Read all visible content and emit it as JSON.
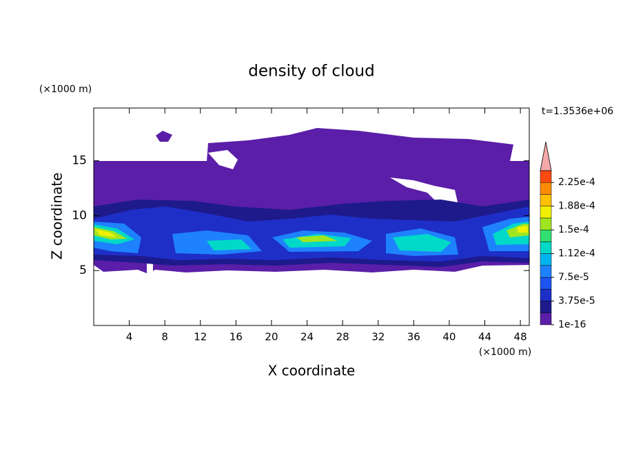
{
  "chart_data": {
    "type": "contour",
    "title": "density of cloud",
    "x_label": "X coordinate",
    "y_label": "Z coordinate",
    "x_unit": "(×1000 m)",
    "y_unit": "(×1000 m)",
    "annotation": "t=1.3536e+06",
    "xlim": [
      0,
      49
    ],
    "ylim": [
      0,
      19.8
    ],
    "xticks": [
      4,
      8,
      12,
      16,
      20,
      24,
      28,
      32,
      36,
      40,
      44,
      48
    ],
    "yticks": [
      5,
      10,
      15
    ],
    "colorbar": {
      "clim": [
        0,
        0.00024375
      ],
      "colors": [
        "#5a1ea8",
        "#1e1a8c",
        "#1e2fc8",
        "#1e55f0",
        "#1e82ff",
        "#00b4f0",
        "#00d8c8",
        "#30e070",
        "#a0e620",
        "#f0f000",
        "#ffc000",
        "#ff8c00",
        "#ff4a10"
      ],
      "over_color": "#f4a8a8",
      "ticks": [
        1e-16,
        {
          "value": 3.75e-05,
          "label": "3.75e-5"
        },
        {
          "value": 7.5e-05,
          "label": "7.5e-5"
        },
        {
          "value": 0.0001125,
          "label": "1.12e-4"
        },
        {
          "value": 0.00015,
          "label": "1.5e-4"
        },
        {
          "value": 0.0001875,
          "label": "1.88e-4"
        },
        {
          "value": 0.000225,
          "label": "2.25e-4"
        }
      ]
    }
  }
}
